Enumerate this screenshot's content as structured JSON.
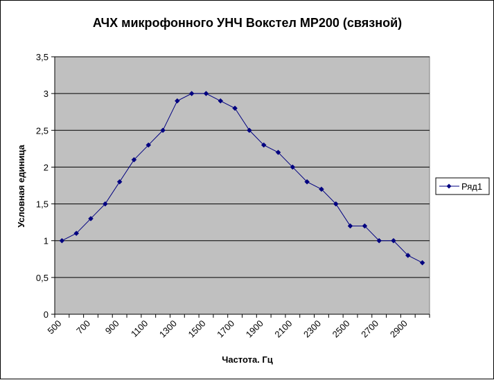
{
  "chart_data": {
    "type": "line",
    "title": "АЧХ микрофонного УНЧ Вокстел MP200 (связной)",
    "xlabel": "Частота. Гц",
    "ylabel": "Условная единица",
    "x": [
      500,
      600,
      700,
      800,
      900,
      1000,
      1100,
      1200,
      1300,
      1400,
      1500,
      1600,
      1700,
      1800,
      1900,
      2000,
      2100,
      2200,
      2300,
      2400,
      2500,
      2600,
      2700,
      2800,
      2900,
      3000
    ],
    "x_tick_labels": [
      "500",
      "700",
      "900",
      "1100",
      "1300",
      "1500",
      "1700",
      "1900",
      "2100",
      "2300",
      "2500",
      "2700",
      "2900"
    ],
    "y_tick_labels": [
      "0",
      "0,5",
      "1",
      "1,5",
      "2",
      "2,5",
      "3",
      "3,5"
    ],
    "ylim": [
      0,
      3.5
    ],
    "grid": true,
    "legend_position": "right",
    "plot_background": "#c0c0c0",
    "series_color": "#000080",
    "series": [
      {
        "name": "Ряд1",
        "values": [
          1.0,
          1.1,
          1.3,
          1.5,
          1.8,
          2.1,
          2.3,
          2.5,
          2.9,
          3.0,
          3.0,
          2.9,
          2.8,
          2.5,
          2.3,
          2.2,
          2.0,
          1.8,
          1.7,
          1.5,
          1.2,
          1.2,
          1.0,
          1.0,
          0.8,
          0.7
        ]
      }
    ]
  }
}
